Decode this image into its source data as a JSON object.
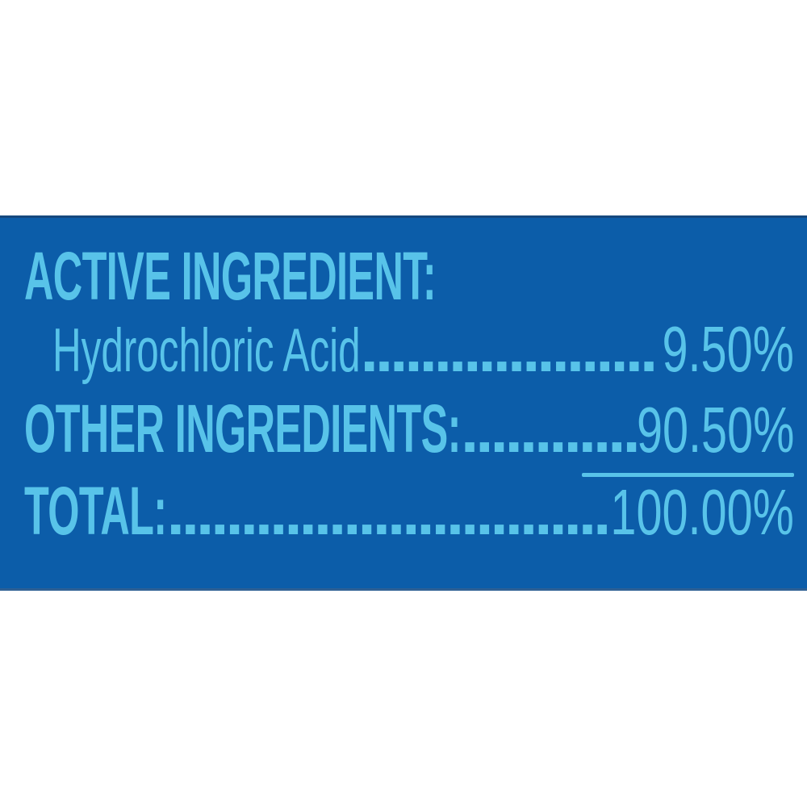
{
  "colors": {
    "page_background": "#ffffff",
    "panel_background": "#0c5da9",
    "panel_text": "#58c3e9"
  },
  "label_panel": {
    "heading": "ACTIVE INGREDIENT:",
    "rows": [
      {
        "label": "Hydrochloric Acid",
        "dots": "....................",
        "value": "9.50%"
      },
      {
        "label": "OTHER INGREDIENTS:",
        "dots": "................",
        "value": "90.50%"
      },
      {
        "label": "TOTAL:",
        "dots": "......................................",
        "value": "100.00%"
      }
    ]
  }
}
